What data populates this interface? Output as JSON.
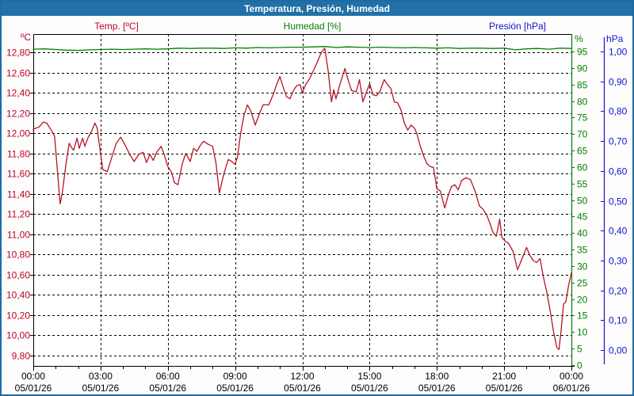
{
  "header": {
    "title": "Temperatura, Presión, Humedad"
  },
  "legend": {
    "temp": {
      "label": "Temp. [ºC]",
      "color": "#c00024"
    },
    "humidity": {
      "label": "Humedad [%]",
      "color": "#007f00"
    },
    "pressure": {
      "label": "Presión [hPa]",
      "color": "#1313cc"
    }
  },
  "chart_data": {
    "type": "line",
    "title": "Temperatura, Presión, Humedad",
    "grid": "dashed-black",
    "legend_position": "top",
    "x_axis": {
      "unit": "hours",
      "range": [
        0,
        24
      ],
      "major_tick_hours": 3,
      "minor_tick_hours": 1,
      "ticks": [
        {
          "time": "00:00",
          "date": "05/01/26"
        },
        {
          "time": "03:00",
          "date": "05/01/26"
        },
        {
          "time": "06:00",
          "date": "05/01/26"
        },
        {
          "time": "09:00",
          "date": "05/01/26"
        },
        {
          "time": "12:00",
          "date": "05/01/26"
        },
        {
          "time": "15:00",
          "date": "05/01/26"
        },
        {
          "time": "18:00",
          "date": "05/01/26"
        },
        {
          "time": "21:00",
          "date": "05/01/26"
        },
        {
          "time": "00:00",
          "date": "06/01/26"
        }
      ]
    },
    "y_axes": [
      {
        "id": "temp",
        "unit": "ºC",
        "color": "#c00024",
        "side": "left",
        "range": [
          9.8,
          12.8
        ],
        "tick_step": 0.2,
        "tick_labels": [
          "12,80",
          "12,60",
          "12,40",
          "12,20",
          "12,00",
          "11,80",
          "11,60",
          "11,40",
          "11,20",
          "11,00",
          "10,80",
          "10,60",
          "10,40",
          "10,20",
          "10,00",
          "9,80"
        ]
      },
      {
        "id": "humidity",
        "unit": "%",
        "color": "#007f00",
        "side": "right",
        "range": [
          0,
          95
        ],
        "tick_step": 5,
        "tick_labels": [
          "95",
          "90",
          "85",
          "80",
          "75",
          "70",
          "65",
          "60",
          "55",
          "50",
          "45",
          "40",
          "35",
          "30",
          "25",
          "20",
          "15",
          "10",
          "5",
          "0"
        ]
      },
      {
        "id": "pressure",
        "unit": "hPa",
        "color": "#1313cc",
        "side": "right-outer",
        "range": [
          0,
          1
        ],
        "tick_step": 0.1,
        "tick_labels": [
          "1,00",
          "0,90",
          "0,80",
          "0,70",
          "0,60",
          "0,50",
          "0,40",
          "0,30",
          "0,20",
          "0,10",
          "0,00"
        ]
      }
    ],
    "series": [
      {
        "name": "Temp. [ºC]",
        "axis": "temp",
        "color": "#b51423",
        "points": [
          [
            0.0,
            12.04
          ],
          [
            0.25,
            12.06
          ],
          [
            0.45,
            12.11
          ],
          [
            0.6,
            12.1
          ],
          [
            0.8,
            12.03
          ],
          [
            0.95,
            11.97
          ],
          [
            1.05,
            11.7
          ],
          [
            1.2,
            11.3
          ],
          [
            1.3,
            11.42
          ],
          [
            1.45,
            11.68
          ],
          [
            1.6,
            11.9
          ],
          [
            1.7,
            11.86
          ],
          [
            1.8,
            11.83
          ],
          [
            1.95,
            11.95
          ],
          [
            2.05,
            11.85
          ],
          [
            2.2,
            11.95
          ],
          [
            2.3,
            11.87
          ],
          [
            2.45,
            11.96
          ],
          [
            2.6,
            12.02
          ],
          [
            2.75,
            12.1
          ],
          [
            2.85,
            12.05
          ],
          [
            3.0,
            11.8
          ],
          [
            3.1,
            11.64
          ],
          [
            3.3,
            11.62
          ],
          [
            3.5,
            11.76
          ],
          [
            3.7,
            11.9
          ],
          [
            3.9,
            11.96
          ],
          [
            4.1,
            11.88
          ],
          [
            4.3,
            11.79
          ],
          [
            4.5,
            11.72
          ],
          [
            4.7,
            11.79
          ],
          [
            4.9,
            11.81
          ],
          [
            5.05,
            11.71
          ],
          [
            5.2,
            11.79
          ],
          [
            5.35,
            11.73
          ],
          [
            5.5,
            11.81
          ],
          [
            5.7,
            11.87
          ],
          [
            5.85,
            11.78
          ],
          [
            6.0,
            11.67
          ],
          [
            6.15,
            11.62
          ],
          [
            6.3,
            11.51
          ],
          [
            6.45,
            11.49
          ],
          [
            6.65,
            11.7
          ],
          [
            6.8,
            11.8
          ],
          [
            7.0,
            11.72
          ],
          [
            7.15,
            11.85
          ],
          [
            7.3,
            11.82
          ],
          [
            7.45,
            11.88
          ],
          [
            7.6,
            11.92
          ],
          [
            7.8,
            11.89
          ],
          [
            8.0,
            11.87
          ],
          [
            8.15,
            11.7
          ],
          [
            8.3,
            11.41
          ],
          [
            8.5,
            11.6
          ],
          [
            8.7,
            11.74
          ],
          [
            8.85,
            11.72
          ],
          [
            9.0,
            11.69
          ],
          [
            9.1,
            11.76
          ],
          [
            9.25,
            12.0
          ],
          [
            9.4,
            12.18
          ],
          [
            9.55,
            12.28
          ],
          [
            9.7,
            12.22
          ],
          [
            9.9,
            12.08
          ],
          [
            10.1,
            12.2
          ],
          [
            10.25,
            12.28
          ],
          [
            10.5,
            12.28
          ],
          [
            10.7,
            12.38
          ],
          [
            10.85,
            12.48
          ],
          [
            11.0,
            12.56
          ],
          [
            11.15,
            12.45
          ],
          [
            11.3,
            12.36
          ],
          [
            11.45,
            12.34
          ],
          [
            11.6,
            12.42
          ],
          [
            11.75,
            12.47
          ],
          [
            11.9,
            12.48
          ],
          [
            12.0,
            12.4
          ],
          [
            12.15,
            12.48
          ],
          [
            12.3,
            12.53
          ],
          [
            12.5,
            12.62
          ],
          [
            12.7,
            12.72
          ],
          [
            12.85,
            12.8
          ],
          [
            13.0,
            12.84
          ],
          [
            13.15,
            12.62
          ],
          [
            13.3,
            12.31
          ],
          [
            13.4,
            12.43
          ],
          [
            13.5,
            12.34
          ],
          [
            13.7,
            12.5
          ],
          [
            13.9,
            12.64
          ],
          [
            14.05,
            12.52
          ],
          [
            14.2,
            12.42
          ],
          [
            14.4,
            12.41
          ],
          [
            14.55,
            12.53
          ],
          [
            14.7,
            12.31
          ],
          [
            14.85,
            12.4
          ],
          [
            15.0,
            12.49
          ],
          [
            15.15,
            12.38
          ],
          [
            15.3,
            12.37
          ],
          [
            15.45,
            12.41
          ],
          [
            15.65,
            12.53
          ],
          [
            15.8,
            12.48
          ],
          [
            15.95,
            12.44
          ],
          [
            16.1,
            12.31
          ],
          [
            16.25,
            12.3
          ],
          [
            16.4,
            12.23
          ],
          [
            16.55,
            12.1
          ],
          [
            16.7,
            12.03
          ],
          [
            16.85,
            12.08
          ],
          [
            17.0,
            12.05
          ],
          [
            17.1,
            12.0
          ],
          [
            17.25,
            11.88
          ],
          [
            17.4,
            11.78
          ],
          [
            17.55,
            11.7
          ],
          [
            17.7,
            11.67
          ],
          [
            17.85,
            11.66
          ],
          [
            18.0,
            11.45
          ],
          [
            18.15,
            11.43
          ],
          [
            18.35,
            11.26
          ],
          [
            18.5,
            11.38
          ],
          [
            18.65,
            11.47
          ],
          [
            18.8,
            11.49
          ],
          [
            18.95,
            11.44
          ],
          [
            19.1,
            11.53
          ],
          [
            19.3,
            11.56
          ],
          [
            19.5,
            11.54
          ],
          [
            19.7,
            11.43
          ],
          [
            19.9,
            11.28
          ],
          [
            20.05,
            11.25
          ],
          [
            20.2,
            11.2
          ],
          [
            20.35,
            11.12
          ],
          [
            20.5,
            11.02
          ],
          [
            20.65,
            10.98
          ],
          [
            20.8,
            11.15
          ],
          [
            20.9,
            10.97
          ],
          [
            21.05,
            10.93
          ],
          [
            21.2,
            10.91
          ],
          [
            21.4,
            10.83
          ],
          [
            21.6,
            10.65
          ],
          [
            21.8,
            10.76
          ],
          [
            22.0,
            10.87
          ],
          [
            22.15,
            10.79
          ],
          [
            22.3,
            10.74
          ],
          [
            22.45,
            10.72
          ],
          [
            22.6,
            10.76
          ],
          [
            22.75,
            10.58
          ],
          [
            22.9,
            10.43
          ],
          [
            23.05,
            10.25
          ],
          [
            23.2,
            10.04
          ],
          [
            23.35,
            9.88
          ],
          [
            23.45,
            9.86
          ],
          [
            23.55,
            10.07
          ],
          [
            23.65,
            10.31
          ],
          [
            23.75,
            10.33
          ],
          [
            23.88,
            10.5
          ],
          [
            24.0,
            10.62
          ]
        ]
      },
      {
        "name": "Humedad [%]",
        "axis": "humidity",
        "color": "#008000",
        "points": [
          [
            0,
            95.7
          ],
          [
            0.5,
            95.8
          ],
          [
            1,
            95.6
          ],
          [
            1.5,
            95.4
          ],
          [
            2,
            95.3
          ],
          [
            2.5,
            95.5
          ],
          [
            3,
            95.6
          ],
          [
            3.5,
            95.7
          ],
          [
            4,
            95.6
          ],
          [
            4.5,
            95.7
          ],
          [
            5,
            95.8
          ],
          [
            5.5,
            95.7
          ],
          [
            6,
            95.8
          ],
          [
            6.5,
            96.0
          ],
          [
            7,
            95.9
          ],
          [
            7.5,
            96.0
          ],
          [
            8,
            96.0
          ],
          [
            8.5,
            95.9
          ],
          [
            9,
            96.1
          ],
          [
            9.5,
            96.0
          ],
          [
            10,
            96.2
          ],
          [
            10.5,
            96.1
          ],
          [
            11,
            96.2
          ],
          [
            11.5,
            96.3
          ],
          [
            12,
            96.3
          ],
          [
            12.5,
            96.4
          ],
          [
            13,
            96.5
          ],
          [
            13.5,
            96.2
          ],
          [
            14,
            96.4
          ],
          [
            14.5,
            96.3
          ],
          [
            15,
            96.2
          ],
          [
            15.5,
            96.3
          ],
          [
            16,
            96.2
          ],
          [
            16.5,
            96.1
          ],
          [
            17,
            96.2
          ],
          [
            17.5,
            96.1
          ],
          [
            18,
            96.0
          ],
          [
            18.5,
            96.1
          ],
          [
            19,
            95.9
          ],
          [
            19.5,
            96.0
          ],
          [
            20,
            96.0
          ],
          [
            20.5,
            95.9
          ],
          [
            21,
            96.0
          ],
          [
            21.5,
            95.5
          ],
          [
            22,
            95.8
          ],
          [
            22.5,
            95.9
          ],
          [
            23,
            95.7
          ],
          [
            23.5,
            96.0
          ],
          [
            24,
            95.9
          ]
        ]
      },
      {
        "name": "Presión [hPa]",
        "axis": "pressure",
        "color": "#1313cc",
        "points": []
      }
    ]
  }
}
